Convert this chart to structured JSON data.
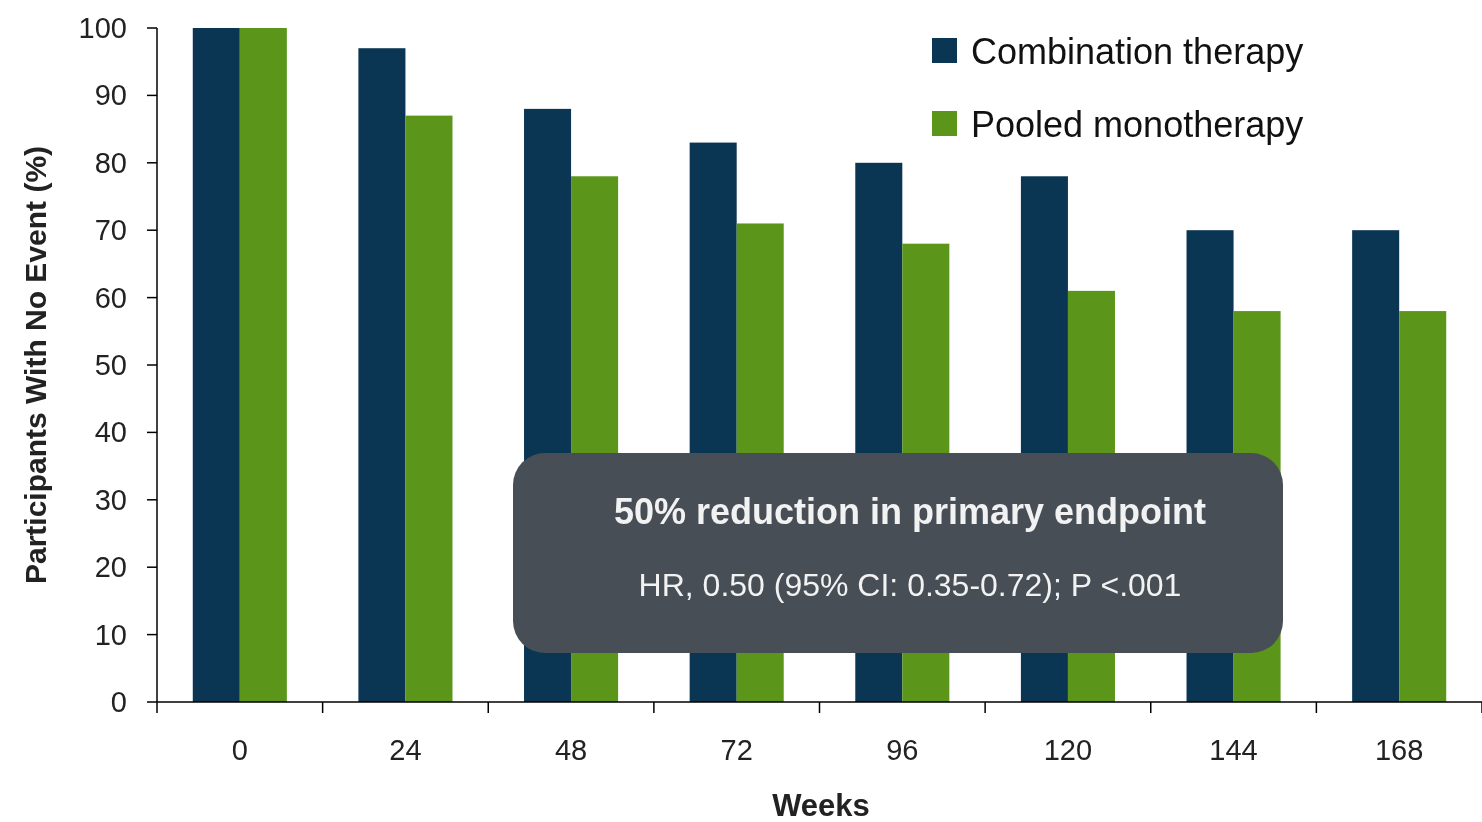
{
  "chart_data": {
    "type": "bar",
    "xlabel": "Weeks",
    "ylabel": "Participants With No Event (%)",
    "categories": [
      "0",
      "24",
      "48",
      "72",
      "96",
      "120",
      "144",
      "168"
    ],
    "series": [
      {
        "name": "Combination therapy",
        "color": "#0a3654",
        "values": [
          100,
          97,
          88,
          83,
          80,
          78,
          70,
          70
        ]
      },
      {
        "name": "Pooled monotherapy",
        "color": "#5b961b",
        "values": [
          100,
          87,
          78,
          71,
          68,
          61,
          58,
          58
        ]
      }
    ],
    "ylim": [
      0,
      100
    ],
    "yticks": [
      0,
      10,
      20,
      30,
      40,
      50,
      60,
      70,
      80,
      90,
      100
    ],
    "legend": "top right",
    "annotations": [
      "50% reduction in primary endpoint",
      "HR, 0.50 (95% CI: 0.35-0.72); P <.001"
    ]
  }
}
